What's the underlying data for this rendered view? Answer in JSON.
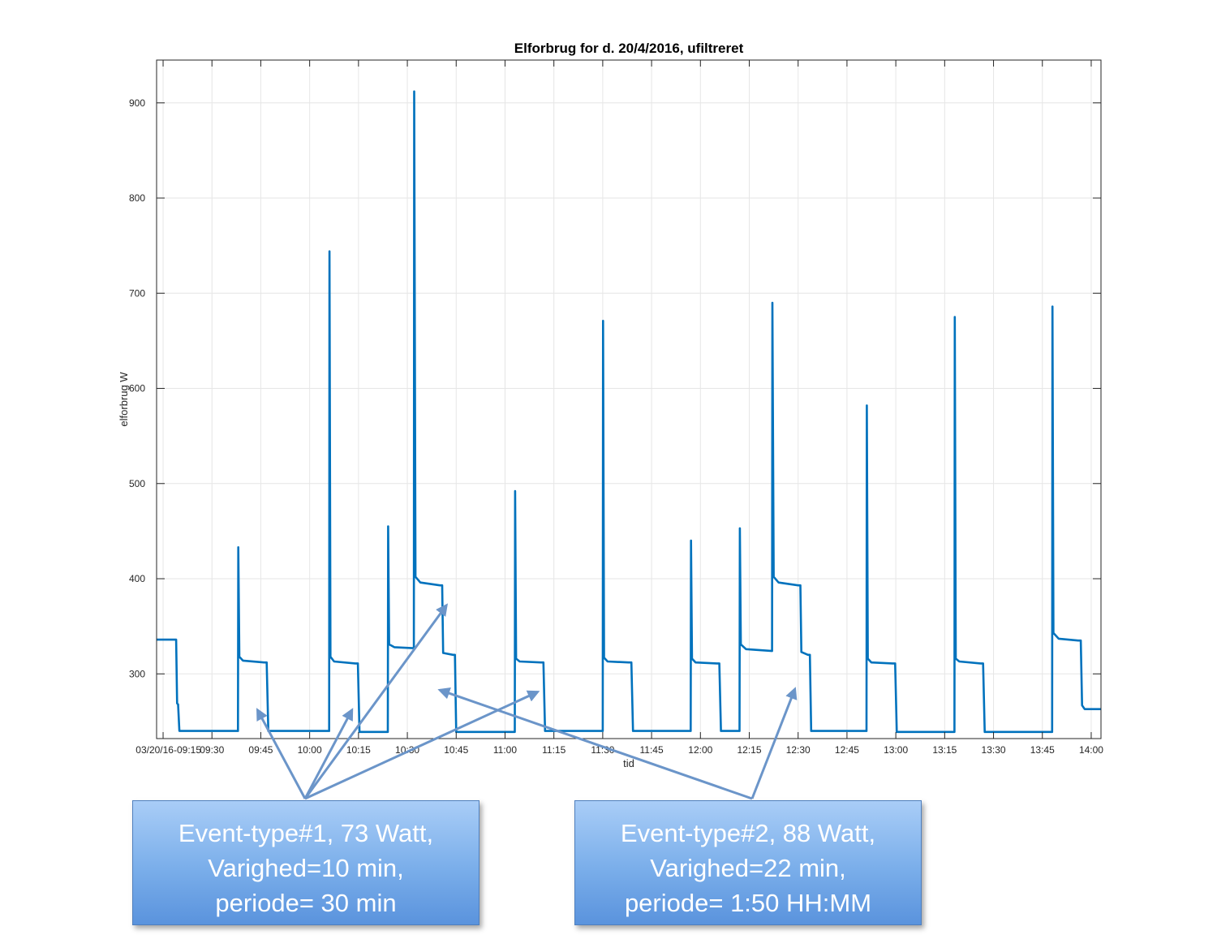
{
  "chart_data": {
    "type": "line",
    "title": "Elforbrug for d. 20/4/2016, ufiltreret",
    "xlabel": "tid",
    "ylabel": "elforbrug W",
    "x_unit": "time HH:MM",
    "xlim": [
      "09:13",
      "14:03"
    ],
    "ylim": [
      232,
      945
    ],
    "x_ticks": [
      "03/20/16-09:15",
      "09:30",
      "09:45",
      "10:00",
      "10:15",
      "10:30",
      "10:45",
      "11:00",
      "11:15",
      "11:30",
      "11:45",
      "12:00",
      "12:15",
      "12:30",
      "12:45",
      "13:00",
      "13:15",
      "13:30",
      "13:45",
      "14:00"
    ],
    "y_ticks": [
      300,
      400,
      500,
      600,
      700,
      800,
      900
    ],
    "grid": true,
    "series": [
      {
        "color": "#0072bd",
        "points": [
          [
            "09:13",
            336
          ],
          [
            "09:19",
            336
          ],
          [
            "09:19.3",
            269
          ],
          [
            "09:19.6",
            268
          ],
          [
            "09:20",
            240
          ],
          [
            "09:38",
            240
          ],
          [
            "09:38.1",
            433
          ],
          [
            "09:38.4",
            318
          ],
          [
            "09:39.5",
            314
          ],
          [
            "09:46",
            312
          ],
          [
            "09:46.8",
            312
          ],
          [
            "09:47.3",
            240
          ],
          [
            "10:06",
            240
          ],
          [
            "10:06.1",
            744
          ],
          [
            "10:06.4",
            318
          ],
          [
            "10:07.5",
            313
          ],
          [
            "10:14",
            311
          ],
          [
            "10:14.8",
            311
          ],
          [
            "10:15.3",
            239
          ],
          [
            "10:24",
            239
          ],
          [
            "10:24.1",
            455
          ],
          [
            "10:24.4",
            331
          ],
          [
            "10:26",
            328
          ],
          [
            "10:32",
            327
          ],
          [
            "10:32.1",
            912
          ],
          [
            "10:32.5",
            402
          ],
          [
            "10:34",
            396
          ],
          [
            "10:40",
            393
          ],
          [
            "10:40.7",
            393
          ],
          [
            "10:41",
            322
          ],
          [
            "10:44",
            320
          ],
          [
            "10:44.6",
            320
          ],
          [
            "10:45",
            239
          ],
          [
            "11:03",
            239
          ],
          [
            "11:03.1",
            492
          ],
          [
            "11:03.4",
            316
          ],
          [
            "11:04.5",
            313
          ],
          [
            "11:11",
            312
          ],
          [
            "11:11.8",
            312
          ],
          [
            "11:12.3",
            240
          ],
          [
            "11:30",
            240
          ],
          [
            "11:30.1",
            671
          ],
          [
            "11:30.4",
            317
          ],
          [
            "11:31.5",
            313
          ],
          [
            "11:38",
            312
          ],
          [
            "11:38.8",
            312
          ],
          [
            "11:39.3",
            240
          ],
          [
            "11:57",
            240
          ],
          [
            "11:57.1",
            440
          ],
          [
            "11:57.4",
            316
          ],
          [
            "11:58.5",
            312
          ],
          [
            "12:05",
            311
          ],
          [
            "12:05.8",
            311
          ],
          [
            "12:06.3",
            240
          ],
          [
            "12:12",
            240
          ],
          [
            "12:12.1",
            453
          ],
          [
            "12:12.4",
            331
          ],
          [
            "12:14",
            326
          ],
          [
            "12:22",
            324
          ],
          [
            "12:22.1",
            690
          ],
          [
            "12:22.5",
            402
          ],
          [
            "12:24",
            396
          ],
          [
            "12:30",
            393
          ],
          [
            "12:30.7",
            393
          ],
          [
            "12:31",
            323
          ],
          [
            "12:33",
            320
          ],
          [
            "12:33.6",
            320
          ],
          [
            "12:34",
            240
          ],
          [
            "12:51",
            240
          ],
          [
            "12:51.1",
            582
          ],
          [
            "12:51.4",
            316
          ],
          [
            "12:52.5",
            312
          ],
          [
            "12:59",
            311
          ],
          [
            "12:59.8",
            311
          ],
          [
            "13:00.3",
            239
          ],
          [
            "13:18",
            239
          ],
          [
            "13:18.1",
            675
          ],
          [
            "13:18.4",
            316
          ],
          [
            "13:19.5",
            313
          ],
          [
            "13:26",
            311
          ],
          [
            "13:26.8",
            311
          ],
          [
            "13:27.3",
            239
          ],
          [
            "13:48",
            239
          ],
          [
            "13:48.1",
            686
          ],
          [
            "13:48.4",
            343
          ],
          [
            "13:50",
            337
          ],
          [
            "13:56",
            335
          ],
          [
            "13:56.8",
            335
          ],
          [
            "13:57.2",
            267
          ],
          [
            "13:58",
            263
          ],
          [
            "14:03",
            263
          ]
        ]
      }
    ]
  },
  "annotations": [
    {
      "lines": [
        "Event-type#1, 73 Watt,",
        "Varighed=10 min,",
        "periode= 30 min"
      ],
      "arrow_targets": [
        [
          "09:44",
          262
        ],
        [
          "10:13",
          262
        ],
        [
          "10:42",
          372
        ],
        [
          "11:10",
          281
        ]
      ]
    },
    {
      "lines": [
        "Event-type#2, 88 Watt,",
        "Varighed=22 min,",
        "periode= 1:50 HH:MM"
      ],
      "arrow_targets": [
        [
          "10:40",
          283
        ],
        [
          "12:29",
          284
        ]
      ]
    }
  ],
  "colors": {
    "line": "#0072bd",
    "arrow": "#6b95c9",
    "grid": "#e6e6e6",
    "axis": "#262626"
  }
}
